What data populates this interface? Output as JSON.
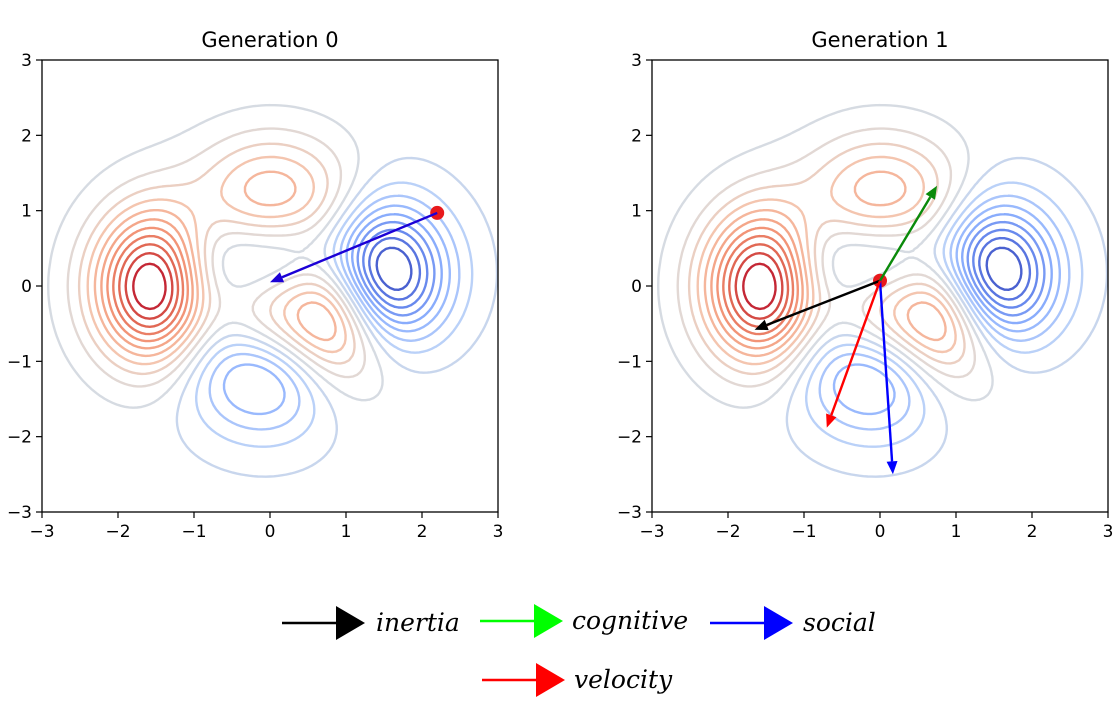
{
  "chart_data": [
    {
      "type": "contour",
      "title": "Generation 0",
      "xlabel": "",
      "ylabel": "",
      "xlim": [
        -3,
        3
      ],
      "ylim": [
        -3,
        3
      ],
      "xticks": [
        -3,
        -2,
        -1,
        0,
        1,
        2,
        3
      ],
      "yticks": [
        -3,
        -2,
        -1,
        0,
        1,
        2,
        3
      ],
      "xtick_labels": [
        "−3",
        "−2",
        "−1",
        "0",
        "1",
        "2",
        "3"
      ],
      "ytick_labels": [
        "−3",
        "−2",
        "−1",
        "0",
        "1",
        "2",
        "3"
      ],
      "colormap": "coolwarm",
      "grid": false,
      "particles": [
        {
          "x": 2.2,
          "y": 0.97,
          "color": "#e8191c"
        }
      ],
      "arrows": [
        {
          "name": "social",
          "from": [
            2.2,
            0.97
          ],
          "to": [
            0.0,
            0.05
          ],
          "color": "#1b00d6"
        }
      ]
    },
    {
      "type": "contour",
      "title": "Generation 1",
      "xlabel": "",
      "ylabel": "",
      "xlim": [
        -3,
        3
      ],
      "ylim": [
        -3,
        3
      ],
      "xticks": [
        -3,
        -2,
        -1,
        0,
        1,
        2,
        3
      ],
      "yticks": [
        -3,
        -2,
        -1,
        0,
        1,
        2,
        3
      ],
      "xtick_labels": [
        "−3",
        "−2",
        "−1",
        "0",
        "1",
        "2",
        "3"
      ],
      "ytick_labels": [
        "−3",
        "−2",
        "−1",
        "0",
        "1",
        "2",
        "3"
      ],
      "colormap": "coolwarm",
      "grid": false,
      "particles": [
        {
          "x": 0.0,
          "y": 0.07,
          "color": "#e8191c"
        }
      ],
      "arrows": [
        {
          "name": "inertia",
          "from": [
            0.0,
            0.07
          ],
          "to": [
            -1.65,
            -0.58
          ],
          "color": "#000000"
        },
        {
          "name": "cognitive",
          "from": [
            0.0,
            0.07
          ],
          "to": [
            0.75,
            1.33
          ],
          "color": "#0a8a0a"
        },
        {
          "name": "social",
          "from": [
            0.0,
            0.07
          ],
          "to": [
            0.17,
            -2.5
          ],
          "color": "#0000ff"
        },
        {
          "name": "velocity",
          "from": [
            0.0,
            0.07
          ],
          "to": [
            -0.7,
            -1.88
          ],
          "color": "#ff0000"
        }
      ]
    }
  ],
  "legend": {
    "placement": "bottom-center",
    "entries": [
      {
        "key": "inertia",
        "label": "inertia",
        "color": "#000000",
        "head_color": "#000000"
      },
      {
        "key": "cognitive",
        "label": "cognitive",
        "color": "#00ff00",
        "head_color": "#00ff00"
      },
      {
        "key": "social",
        "label": "social",
        "color": "#0000ff",
        "head_color": "#0000ff"
      },
      {
        "key": "velocity",
        "label": "velocity",
        "color": "#ff0000",
        "head_color": "#ff0000"
      }
    ]
  }
}
